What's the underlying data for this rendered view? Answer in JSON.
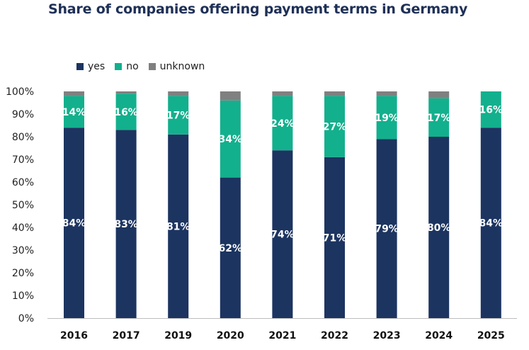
{
  "chart_data": {
    "type": "bar",
    "stacked": true,
    "title": "Share of companies offering payment terms in Germany",
    "categories": [
      "2016",
      "2017",
      "2019",
      "2020",
      "2021",
      "2022",
      "2023",
      "2024",
      "2025"
    ],
    "series": [
      {
        "name": "yes",
        "color": "#1c3460",
        "values": [
          84,
          83,
          81,
          62,
          74,
          71,
          79,
          80,
          84
        ]
      },
      {
        "name": "no",
        "color": "#13b08d",
        "values": [
          14,
          16,
          17,
          34,
          24,
          27,
          19,
          17,
          16
        ]
      },
      {
        "name": "unknown",
        "color": "#808080",
        "values": [
          2,
          1,
          2,
          4,
          2,
          2,
          2,
          3,
          0
        ]
      }
    ],
    "data_labels": [
      [
        "84%",
        "83%",
        "81%",
        "62%",
        "74%",
        "71%",
        "79%",
        "80%",
        "84%"
      ],
      [
        "14%",
        "16%",
        "17%",
        "34%",
        "24%",
        "27%",
        "19%",
        "17%",
        "16%"
      ]
    ],
    "yticks": [
      "0%",
      "10%",
      "20%",
      "30%",
      "40%",
      "50%",
      "60%",
      "70%",
      "80%",
      "90%",
      "100%"
    ],
    "ylim": [
      0,
      100
    ],
    "legend_position": "top-left",
    "grid": false
  }
}
